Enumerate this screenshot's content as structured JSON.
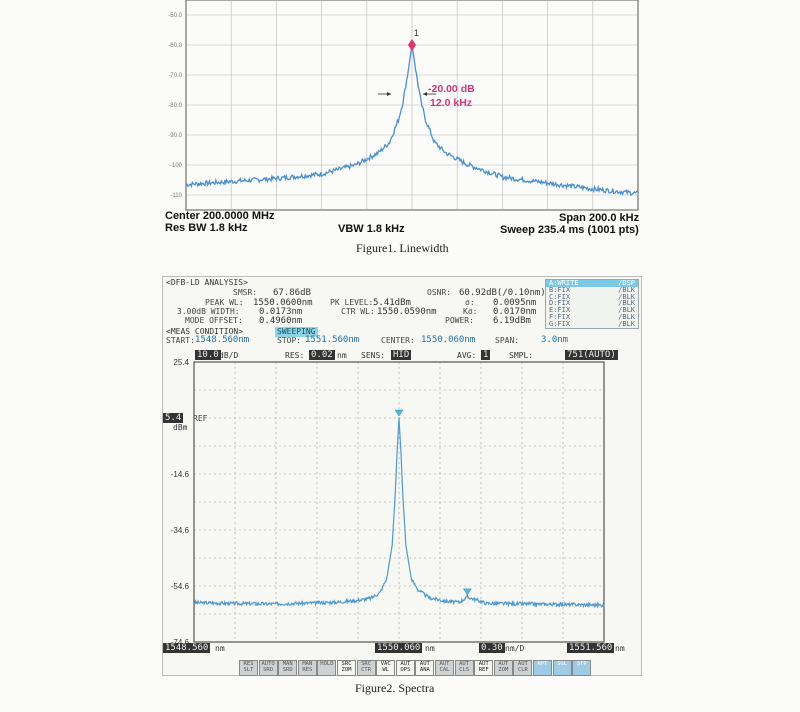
{
  "figure1": {
    "y_ticks": [
      "-50.0",
      "-60.0",
      "-70.0",
      "-80.0",
      "-90.0",
      "-100",
      "-110"
    ],
    "marker_label": "1",
    "annotation": {
      "level": "-20.00 dB",
      "width": "12.0 kHz"
    },
    "center": "Center 200.0000 MHz",
    "res_bw": "Res BW 1.8 kHz",
    "vbw": "VBW 1.8 kHz",
    "span": "Span 200.0 kHz",
    "sweep": "Sweep  235.4 ms (1001 pts)",
    "caption": "Figure1. Linewidth",
    "colors": {
      "trace": "#4a8fd0",
      "marker": "#e0336f",
      "annotation": "#d2357a"
    }
  },
  "figure2": {
    "analysis_title": "<DFB-LD ANALYSIS>",
    "smsr_label": "SMSR:",
    "smsr": "67.86dB",
    "osnr_label": "OSNR:",
    "osnr": "60.92dB(/0.10nm)",
    "peak_wl_label": "PEAK WL:",
    "peak_wl": "1550.0600nm",
    "pk_level_label": "PK LEVEL:",
    "pk_level": "5.41dBm",
    "sigma_label": "σ:",
    "sigma": "0.0095nm",
    "width_label": "3.00dB WIDTH:",
    "width": "0.0173nm",
    "ctr_wl_label": "CTR WL:",
    "ctr_wl": "1550.0590nm",
    "ksigma_label": "Kσ:",
    "ksigma": "0.0170nm",
    "mode_offset_label": "MODE OFFSET:",
    "mode_offset": "0.4960nm",
    "power_label": "POWER:",
    "power": "6.19dBm",
    "meas_condition": "<MEAS CONDITION>",
    "sweeping": "SWEEPING",
    "start_label": "START:",
    "start": "1548.560nm",
    "stop_label": "STOP:",
    "stop": "1551.560nm",
    "center_label": "CENTER:",
    "center": "1550.060nm",
    "span_label": "SPAN:",
    "span": "3.0nm",
    "scale": "10.0",
    "scale_unit": "dB/D",
    "res_label": "RES:",
    "res": "0.02",
    "res_unit": "nm",
    "sens_label": "SENS:",
    "sens": "HID",
    "avg_label": "AVG:",
    "avg": "1",
    "smpl_label": "SMPL:",
    "smpl": "751(AUTO)",
    "ref_value": "5.4",
    "ref_label": "REF",
    "ref_unit": "dBm",
    "y_ticks": [
      "25.4",
      "5.4",
      "-14.6",
      "-34.6",
      "-54.6",
      "-74.6"
    ],
    "x_start": "1548.560",
    "x_start_unit": "nm",
    "x_center": "1550.060",
    "x_center_unit": "nm",
    "x_div": "0.30",
    "x_div_unit": "nm/D",
    "x_stop": "1551.560",
    "x_stop_unit": "nm",
    "traces": [
      {
        "name": "A:WRITE",
        "state": "/DSP",
        "selected": true
      },
      {
        "name": "B:FIX",
        "state": "/BLK"
      },
      {
        "name": "C:FIX",
        "state": "/BLK"
      },
      {
        "name": "D:FIX",
        "state": "/BLK"
      },
      {
        "name": "E:FIX",
        "state": "/BLK"
      },
      {
        "name": "F:FIX",
        "state": "/BLK"
      },
      {
        "name": "G:FIX",
        "state": "/BLK"
      }
    ],
    "softkeys": [
      "RES SLT",
      "AUTO SRD",
      "MAN SRD",
      "MAN RES",
      "HOLD",
      "SRC ZOM",
      "SRC CTR",
      "VAC WL",
      "AUT OPS",
      "AUT ANA",
      "AUT CAL",
      "AUT CLS",
      "AUT REF",
      "AUT ZOM",
      "AUT CLR",
      "RPT",
      "SGL",
      "STP"
    ],
    "caption": "Figure2. Spectra",
    "colors": {
      "trace": "#4f9ad0",
      "marker": "#58b7e0"
    }
  },
  "chart_data": [
    {
      "type": "line",
      "x_center_mhz": 200.0,
      "x_span_khz": 200.0,
      "xlim_khz_offset": [
        -100,
        100
      ],
      "ylim": [
        -115,
        -45
      ],
      "y_ticks": [
        -50,
        -60,
        -70,
        -80,
        -90,
        -100,
        -110
      ],
      "grid": true,
      "series": [
        {
          "x": [
            -100,
            -80,
            -60,
            -40,
            -25,
            -15,
            -10,
            -6,
            -4,
            -2,
            0,
            2,
            4,
            6,
            10,
            15,
            25,
            40,
            60,
            80,
            100
          ],
          "y": [
            -106.5,
            -105.5,
            -104.5,
            -103,
            -100,
            -96,
            -92.5,
            -85,
            -79,
            -70,
            -60,
            -70,
            -79,
            -85,
            -92.5,
            -96,
            -100,
            -104,
            -106,
            -108,
            -109.5
          ]
        }
      ],
      "markers": [
        {
          "label": "1",
          "x": 0,
          "y": -60
        }
      ],
      "annotations": [
        "-20.00 dB",
        "12.0 kHz"
      ]
    },
    {
      "type": "line",
      "xlim": [
        1548.56,
        1551.56
      ],
      "ylim": [
        -74.6,
        25.4
      ],
      "y_ticks": [
        25.4,
        5.4,
        -14.6,
        -34.6,
        -54.6,
        -74.6
      ],
      "grid": true,
      "series": [
        {
          "x": [
            1548.56,
            1548.8,
            1549.1,
            1549.4,
            1549.6,
            1549.75,
            1549.85,
            1549.92,
            1549.97,
            1550.01,
            1550.03,
            1550.045,
            1550.06,
            1550.075,
            1550.09,
            1550.11,
            1550.15,
            1550.2,
            1550.28,
            1550.4,
            1550.5,
            1550.56,
            1550.7,
            1551.0,
            1551.3,
            1551.56
          ],
          "y": [
            -60.5,
            -60.8,
            -61,
            -60.7,
            -60.4,
            -59.8,
            -59,
            -57,
            -52,
            -40,
            -24,
            -8,
            5.4,
            -8,
            -24,
            -40,
            -52,
            -56,
            -58.8,
            -60,
            -60.4,
            -58.5,
            -60.8,
            -61,
            -61.2,
            -61.4
          ]
        }
      ],
      "markers": [
        {
          "x": 1550.06,
          "y": 5.4
        },
        {
          "x": 1550.56,
          "y": -58.5
        }
      ]
    }
  ]
}
